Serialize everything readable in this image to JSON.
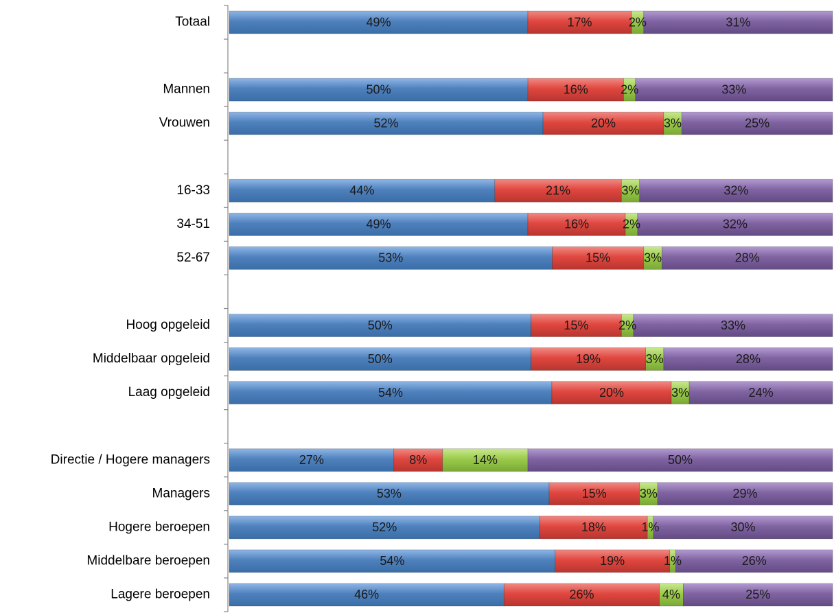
{
  "chart_data": {
    "type": "bar",
    "orientation": "horizontal",
    "stacked": true,
    "normalized": true,
    "title": "",
    "xlabel": "",
    "ylabel": "",
    "xlim": [
      0,
      100
    ],
    "legend": "none",
    "grid": false,
    "colors": [
      "#4f81bd",
      "#e0473f",
      "#9bcb4b",
      "#8064a2"
    ],
    "categories": [
      "Totaal",
      "",
      "Mannen",
      "Vrouwen",
      "",
      "16-33",
      "34-51",
      "52-67",
      "",
      "Hoog opgeleid",
      "Middelbaar opgeleid",
      "Laag opgeleid",
      "",
      "Directie / Hogere managers",
      "Managers",
      "Hogere beroepen",
      "Middelbare beroepen",
      "Lagere beroepen"
    ],
    "series": [
      {
        "values": [
          49,
          null,
          50,
          52,
          null,
          44,
          49,
          53,
          null,
          50,
          50,
          54,
          null,
          27,
          53,
          52,
          54,
          46
        ]
      },
      {
        "values": [
          17,
          null,
          16,
          20,
          null,
          21,
          16,
          15,
          null,
          15,
          19,
          20,
          null,
          8,
          15,
          18,
          19,
          26
        ]
      },
      {
        "values": [
          2,
          null,
          2,
          3,
          null,
          3,
          2,
          3,
          null,
          2,
          3,
          3,
          null,
          14,
          3,
          1,
          1,
          4
        ]
      },
      {
        "values": [
          31,
          null,
          33,
          25,
          null,
          32,
          32,
          28,
          null,
          33,
          28,
          24,
          null,
          50,
          29,
          30,
          26,
          25
        ]
      }
    ],
    "data_labels": [
      [
        "49%",
        null,
        "50%",
        "52%",
        null,
        "44%",
        "49%",
        "53%",
        null,
        "50%",
        "50%",
        "54%",
        null,
        "27%",
        "53%",
        "52%",
        "54%",
        "46%"
      ],
      [
        "17%",
        null,
        "16%",
        "20%",
        null,
        "21%",
        "16%",
        "15%",
        null,
        "15%",
        "19%",
        "20%",
        null,
        "8%",
        "15%",
        "18%",
        "19%",
        "26%"
      ],
      [
        "2%",
        null,
        "2%",
        "3%",
        null,
        "3%",
        "2%",
        "3%",
        null,
        "2%",
        "3%",
        "3%",
        null,
        "14%",
        "3%",
        "1%",
        "1%",
        "4%"
      ],
      [
        "31%",
        null,
        "33%",
        "25%",
        null,
        "32%",
        "32%",
        "28%",
        null,
        "33%",
        "28%",
        "24%",
        null,
        "50%",
        "29%",
        "30%",
        "26%",
        "25%"
      ]
    ]
  }
}
